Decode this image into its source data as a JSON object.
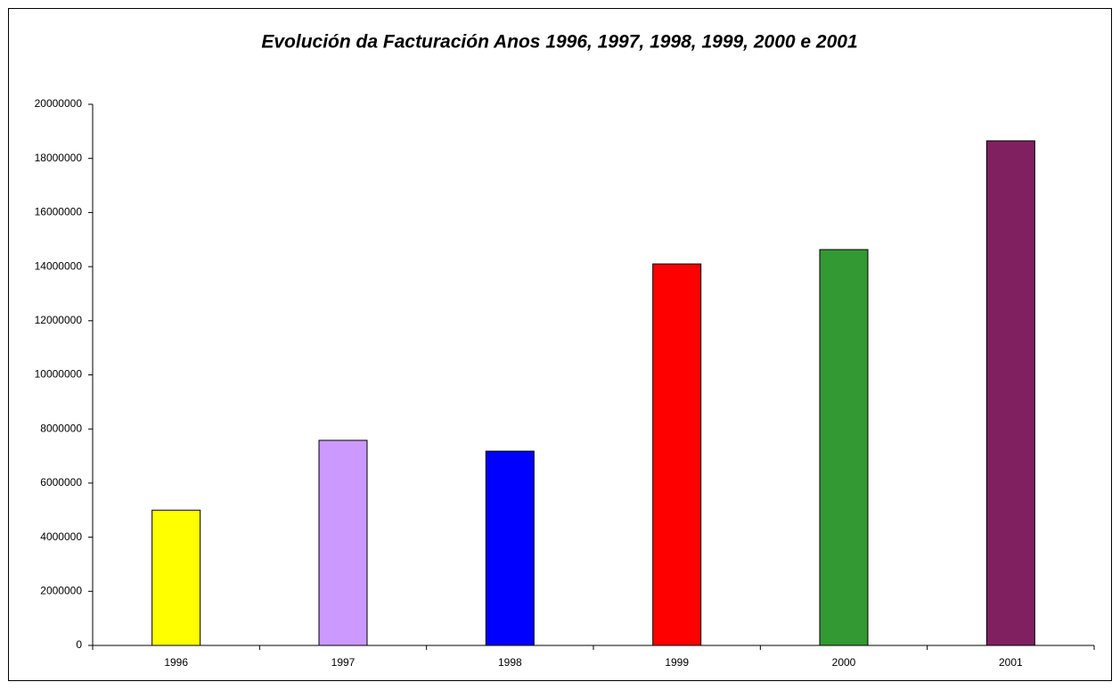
{
  "chart_data": {
    "type": "bar",
    "title": "Evolución da Facturación Anos 1996, 1997, 1998, 1999, 2000 e 2001",
    "categories": [
      "1996",
      "1997",
      "1998",
      "1999",
      "2000",
      "2001"
    ],
    "values": [
      5000000,
      7580000,
      7180000,
      14100000,
      14630000,
      18650000
    ],
    "colors": [
      "#ffff00",
      "#cc99ff",
      "#0000ff",
      "#ff0000",
      "#339933",
      "#802060"
    ],
    "ylim": [
      0,
      20000000
    ],
    "yticks": [
      0,
      2000000,
      4000000,
      6000000,
      8000000,
      10000000,
      12000000,
      14000000,
      16000000,
      18000000,
      20000000
    ],
    "grid": false
  }
}
